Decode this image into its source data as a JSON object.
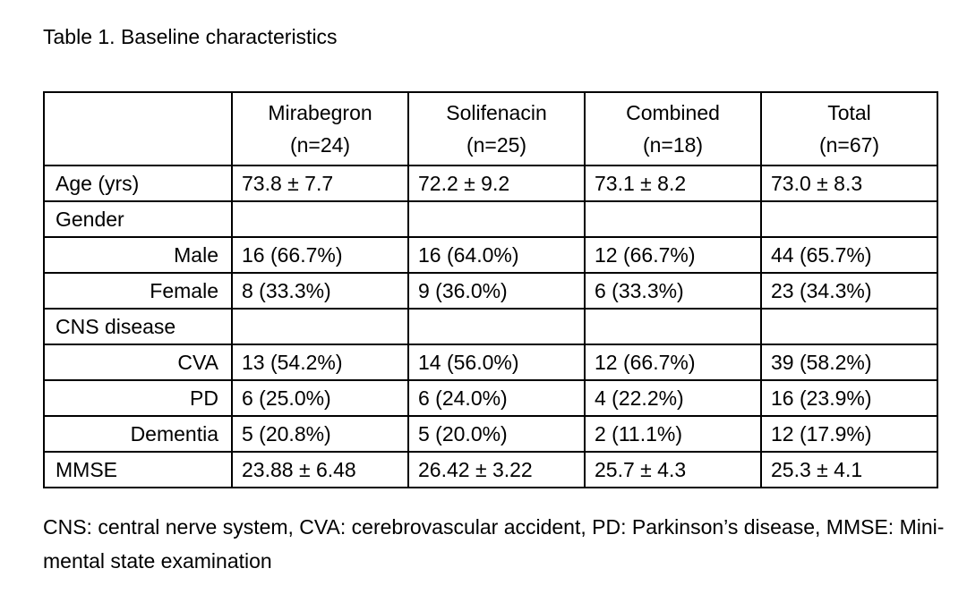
{
  "title": "Table 1. Baseline characteristics",
  "table": {
    "columns": [
      {
        "name": "Mirabegron",
        "n": "(n=24)"
      },
      {
        "name": "Solifenacin",
        "n": "(n=25)"
      },
      {
        "name": "Combined",
        "n": "(n=18)"
      },
      {
        "name": "Total",
        "n": "(n=67)"
      }
    ],
    "rows": [
      {
        "label": "Age (yrs)",
        "indent": false,
        "values": [
          "73.8 ± 7.7",
          "72.2 ± 9.2",
          "73.1 ± 8.2",
          "73.0 ± 8.3"
        ]
      },
      {
        "label": "Gender",
        "indent": false,
        "values": [
          "",
          "",
          "",
          ""
        ]
      },
      {
        "label": "Male",
        "indent": true,
        "values": [
          "16 (66.7%)",
          "16 (64.0%)",
          "12 (66.7%)",
          "44 (65.7%)"
        ]
      },
      {
        "label": "Female",
        "indent": true,
        "values": [
          "8 (33.3%)",
          "9 (36.0%)",
          "6 (33.3%)",
          "23 (34.3%)"
        ]
      },
      {
        "label": "CNS disease",
        "indent": false,
        "values": [
          "",
          "",
          "",
          ""
        ]
      },
      {
        "label": "CVA",
        "indent": true,
        "values": [
          "13 (54.2%)",
          "14 (56.0%)",
          "12 (66.7%)",
          "39 (58.2%)"
        ]
      },
      {
        "label": "PD",
        "indent": true,
        "values": [
          "6 (25.0%)",
          "6 (24.0%)",
          "4 (22.2%)",
          "16 (23.9%)"
        ]
      },
      {
        "label": "Dementia",
        "indent": true,
        "values": [
          "5 (20.8%)",
          "5 (20.0%)",
          "2 (11.1%)",
          "12 (17.9%)"
        ]
      },
      {
        "label": "MMSE",
        "indent": false,
        "values": [
          "23.88 ± 6.48",
          "26.42 ± 3.22",
          "25.7 ± 4.3",
          "25.3 ± 4.1"
        ]
      }
    ]
  },
  "footnote": "CNS: central nerve system, CVA: cerebrovascular accident, PD: Parkinson’s disease, MMSE: Mini-mental state examination"
}
